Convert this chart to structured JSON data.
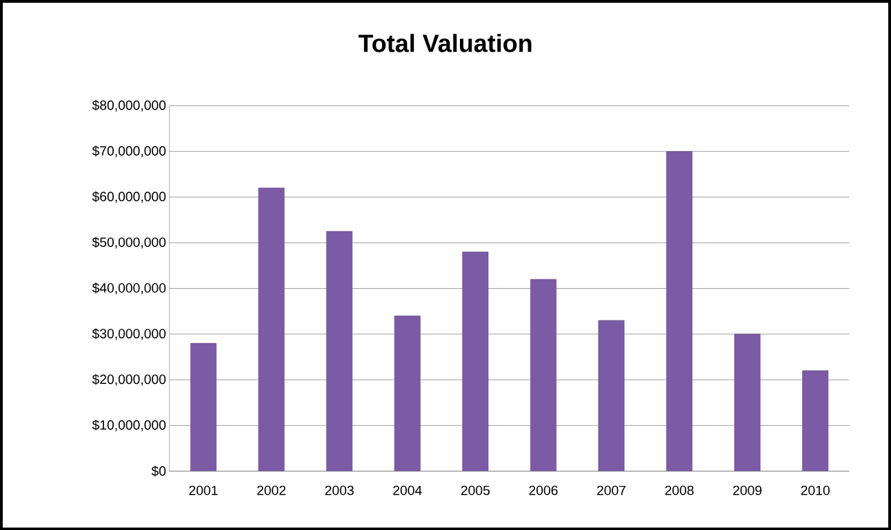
{
  "chart_data": {
    "type": "bar",
    "title": "Total Valuation",
    "categories": [
      "2001",
      "2002",
      "2003",
      "2004",
      "2005",
      "2006",
      "2007",
      "2008",
      "2009",
      "2010"
    ],
    "values": [
      28000000,
      62000000,
      52500000,
      34000000,
      48000000,
      42000000,
      33000000,
      70000000,
      30000000,
      22000000
    ],
    "color": "#7b5aa6",
    "ylim": [
      0,
      80000000
    ],
    "yticks": [
      {
        "value": 0,
        "label": "$0"
      },
      {
        "value": 10000000,
        "label": "$10,000,000"
      },
      {
        "value": 20000000,
        "label": "$20,000,000"
      },
      {
        "value": 30000000,
        "label": "$30,000,000"
      },
      {
        "value": 40000000,
        "label": "$40,000,000"
      },
      {
        "value": 50000000,
        "label": "$50,000,000"
      },
      {
        "value": 60000000,
        "label": "$60,000,000"
      },
      {
        "value": 70000000,
        "label": "$70,000,000"
      },
      {
        "value": 80000000,
        "label": "$80,000,000"
      }
    ],
    "grid": "y"
  }
}
